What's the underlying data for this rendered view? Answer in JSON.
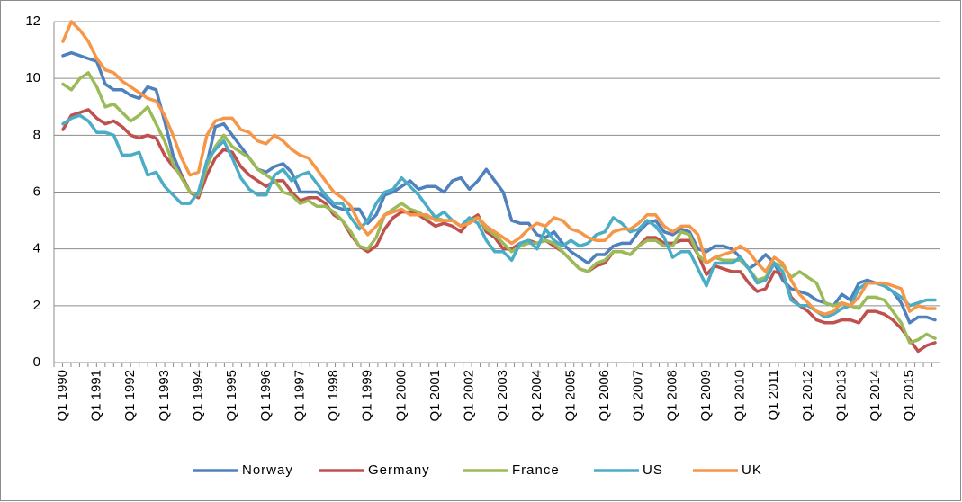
{
  "chart_data": {
    "type": "line",
    "categories": [
      "Q1 1990",
      null,
      null,
      null,
      "Q1 1991",
      null,
      null,
      null,
      "Q1 1992",
      null,
      null,
      null,
      "Q1 1993",
      null,
      null,
      null,
      "Q1 1994",
      null,
      null,
      null,
      "Q1 1995",
      null,
      null,
      null,
      "Q1 1996",
      null,
      null,
      null,
      "Q1 1997",
      null,
      null,
      null,
      "Q1 1998",
      null,
      null,
      null,
      "Q1 1999",
      null,
      null,
      null,
      "Q1 2000",
      null,
      null,
      null,
      "Q1 2001",
      null,
      null,
      null,
      "Q1 2002",
      null,
      null,
      null,
      "Q1 2003",
      null,
      null,
      null,
      "Q1 2004",
      null,
      null,
      null,
      "Q1 2005",
      null,
      null,
      null,
      "Q1 2006",
      null,
      null,
      null,
      "Q1 2007",
      null,
      null,
      null,
      "Q1 2008",
      null,
      null,
      null,
      "Q1 2009",
      null,
      null,
      null,
      "Q1 2010",
      null,
      null,
      null,
      "Q1 2011",
      null,
      null,
      null,
      "Q1 2012",
      null,
      null,
      null,
      "Q1 2013",
      null,
      null,
      null,
      "Q1 2014",
      null,
      null,
      null,
      "Q1 2015",
      null,
      null,
      null
    ],
    "series": [
      {
        "name": "Norway",
        "color": "#4f81bd",
        "values": [
          10.8,
          10.9,
          10.8,
          10.7,
          10.6,
          9.8,
          9.6,
          9.6,
          9.4,
          9.3,
          9.7,
          9.6,
          8.5,
          7.3,
          6.6,
          6.0,
          5.8,
          7.0,
          8.3,
          8.4,
          8.0,
          7.6,
          7.2,
          6.8,
          6.7,
          6.9,
          7.0,
          6.7,
          6.0,
          6.0,
          6.0,
          5.8,
          5.5,
          5.4,
          5.4,
          5.4,
          4.9,
          5.2,
          5.9,
          6.0,
          6.2,
          6.4,
          6.1,
          6.2,
          6.2,
          6.0,
          6.4,
          6.5,
          6.1,
          6.4,
          6.8,
          6.4,
          6.0,
          5.0,
          4.9,
          4.9,
          4.5,
          4.4,
          4.6,
          4.2,
          3.9,
          3.7,
          3.5,
          3.8,
          3.8,
          4.1,
          4.2,
          4.2,
          4.6,
          4.9,
          5.0,
          4.6,
          4.5,
          4.7,
          4.6,
          4.0,
          3.9,
          4.1,
          4.1,
          4.0,
          3.7,
          3.3,
          3.5,
          3.8,
          3.5,
          2.9,
          2.6,
          2.5,
          2.4,
          2.2,
          2.1,
          2.0,
          2.4,
          2.2,
          2.8,
          2.9,
          2.8,
          2.7,
          2.5,
          2.1,
          1.4,
          1.6,
          1.6,
          1.5
        ]
      },
      {
        "name": "Germany",
        "color": "#c0504d",
        "values": [
          8.2,
          8.7,
          8.8,
          8.9,
          8.6,
          8.4,
          8.5,
          8.3,
          8.0,
          7.9,
          8.0,
          7.9,
          7.3,
          6.9,
          6.6,
          6.0,
          5.8,
          6.6,
          7.2,
          7.5,
          7.4,
          6.9,
          6.6,
          6.4,
          6.2,
          6.4,
          6.4,
          6.0,
          5.7,
          5.8,
          5.8,
          5.6,
          5.2,
          5.0,
          4.5,
          4.1,
          3.9,
          4.1,
          4.7,
          5.1,
          5.3,
          5.3,
          5.2,
          5.0,
          4.8,
          4.9,
          4.8,
          4.6,
          5.0,
          5.2,
          4.6,
          4.4,
          4.0,
          4.0,
          4.2,
          4.3,
          4.2,
          4.3,
          4.1,
          3.9,
          3.6,
          3.3,
          3.2,
          3.4,
          3.5,
          3.9,
          3.9,
          3.8,
          4.1,
          4.4,
          4.4,
          4.2,
          4.2,
          4.3,
          4.3,
          3.8,
          3.1,
          3.4,
          3.3,
          3.2,
          3.2,
          2.8,
          2.5,
          2.6,
          3.2,
          3.1,
          2.3,
          2.0,
          1.8,
          1.5,
          1.4,
          1.4,
          1.5,
          1.5,
          1.4,
          1.8,
          1.8,
          1.7,
          1.5,
          1.2,
          0.8,
          0.4,
          0.6,
          0.7
        ]
      },
      {
        "name": "France",
        "color": "#9bbb59",
        "values": [
          9.8,
          9.6,
          10.0,
          10.2,
          9.7,
          9.0,
          9.1,
          8.8,
          8.5,
          8.7,
          9.0,
          8.4,
          7.8,
          7.0,
          6.5,
          6.0,
          5.9,
          6.9,
          7.6,
          8.0,
          7.6,
          7.4,
          7.2,
          6.8,
          6.6,
          6.4,
          6.0,
          5.9,
          5.6,
          5.7,
          5.5,
          5.5,
          5.3,
          5.0,
          4.6,
          4.1,
          4.0,
          4.4,
          5.2,
          5.4,
          5.6,
          5.4,
          5.3,
          5.1,
          5.1,
          5.0,
          5.0,
          4.8,
          5.0,
          5.1,
          4.7,
          4.5,
          4.2,
          3.9,
          4.1,
          4.2,
          4.2,
          4.3,
          4.2,
          3.9,
          3.6,
          3.3,
          3.2,
          3.5,
          3.6,
          3.9,
          3.9,
          3.8,
          4.1,
          4.3,
          4.3,
          4.1,
          4.1,
          4.6,
          4.5,
          3.8,
          3.5,
          3.7,
          3.6,
          3.6,
          3.6,
          3.3,
          2.9,
          3.0,
          3.5,
          3.4,
          3.0,
          3.2,
          3.0,
          2.8,
          2.1,
          2.0,
          2.1,
          2.0,
          1.9,
          2.3,
          2.3,
          2.2,
          1.8,
          1.4,
          0.7,
          0.8,
          1.0,
          0.85
        ]
      },
      {
        "name": "US",
        "color": "#4bacc6",
        "values": [
          8.4,
          8.6,
          8.7,
          8.5,
          8.1,
          8.1,
          8.0,
          7.3,
          7.3,
          7.4,
          6.6,
          6.7,
          6.2,
          5.9,
          5.6,
          5.6,
          6.0,
          7.1,
          7.5,
          7.8,
          7.2,
          6.5,
          6.1,
          5.9,
          5.9,
          6.6,
          6.8,
          6.4,
          6.6,
          6.7,
          6.3,
          5.9,
          5.6,
          5.6,
          5.1,
          4.7,
          5.0,
          5.6,
          6.0,
          6.1,
          6.5,
          6.2,
          5.9,
          5.5,
          5.1,
          5.3,
          5.0,
          4.8,
          5.1,
          4.9,
          4.3,
          3.9,
          3.9,
          3.6,
          4.2,
          4.3,
          4.0,
          4.7,
          4.3,
          4.1,
          4.3,
          4.1,
          4.2,
          4.5,
          4.6,
          5.1,
          4.9,
          4.6,
          4.7,
          5.0,
          4.8,
          4.4,
          3.7,
          3.9,
          3.9,
          3.3,
          2.7,
          3.5,
          3.5,
          3.5,
          3.7,
          3.3,
          2.8,
          2.9,
          3.5,
          3.2,
          2.2,
          2.0,
          2.0,
          1.8,
          1.6,
          1.7,
          1.9,
          2.0,
          2.6,
          2.8,
          2.8,
          2.7,
          2.5,
          2.3,
          2.0,
          2.1,
          2.2,
          2.2
        ]
      },
      {
        "name": "UK",
        "color": "#f79646",
        "values": [
          11.3,
          12.0,
          11.7,
          11.3,
          10.7,
          10.3,
          10.2,
          9.9,
          9.7,
          9.5,
          9.3,
          9.2,
          8.7,
          8.0,
          7.2,
          6.6,
          6.7,
          8.0,
          8.5,
          8.6,
          8.6,
          8.2,
          8.1,
          7.8,
          7.7,
          8.0,
          7.8,
          7.5,
          7.3,
          7.2,
          6.8,
          6.4,
          6.0,
          5.8,
          5.5,
          4.9,
          4.5,
          4.8,
          5.2,
          5.3,
          5.4,
          5.2,
          5.2,
          5.2,
          5.0,
          5.0,
          5.0,
          4.8,
          4.9,
          5.1,
          4.8,
          4.6,
          4.4,
          4.2,
          4.4,
          4.7,
          4.9,
          4.8,
          5.1,
          5.0,
          4.7,
          4.6,
          4.4,
          4.3,
          4.3,
          4.6,
          4.7,
          4.7,
          4.9,
          5.2,
          5.2,
          4.8,
          4.6,
          4.8,
          4.8,
          4.5,
          3.5,
          3.7,
          3.8,
          3.9,
          4.1,
          3.9,
          3.5,
          3.2,
          3.7,
          3.5,
          2.9,
          2.4,
          2.1,
          1.8,
          1.7,
          1.8,
          2.1,
          2.0,
          2.3,
          2.8,
          2.8,
          2.8,
          2.7,
          2.6,
          1.8,
          2.0,
          1.9,
          1.9
        ]
      }
    ],
    "ylim": [
      0,
      12
    ],
    "yticks": [
      0,
      2,
      4,
      6,
      8,
      10,
      12
    ],
    "grid": true,
    "legend": "bottom"
  }
}
